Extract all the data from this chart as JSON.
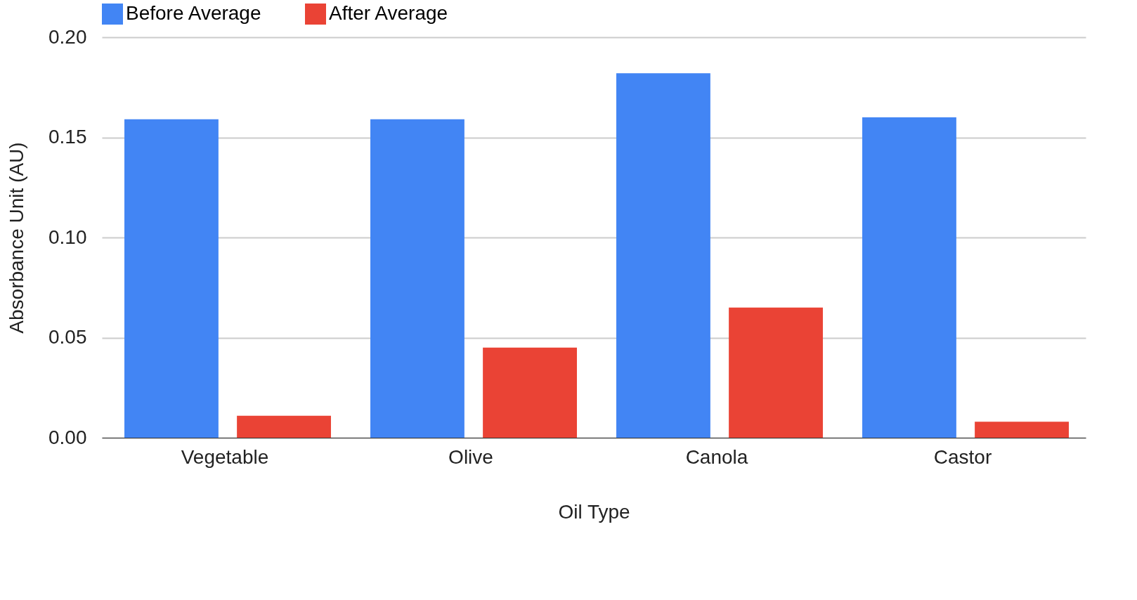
{
  "chart_data": {
    "type": "bar",
    "xlabel": "Oil Type",
    "ylabel": "Absorbance Unit (AU)",
    "categories": [
      "Vegetable",
      "Olive",
      "Canola",
      "Castor"
    ],
    "series": [
      {
        "name": "Before Average",
        "color": "#4285f4",
        "values": [
          0.159,
          0.159,
          0.182,
          0.16
        ]
      },
      {
        "name": "After Average",
        "color": "#ea4335",
        "values": [
          0.011,
          0.045,
          0.065,
          0.008
        ]
      }
    ],
    "ylim": [
      0,
      0.2
    ],
    "yticks": [
      {
        "value": 0,
        "label": "0.00"
      },
      {
        "value": 0.05,
        "label": "0.05"
      },
      {
        "value": 0.1,
        "label": "0.10"
      },
      {
        "value": 0.15,
        "label": "0.15"
      },
      {
        "value": 0.2,
        "label": "0.20"
      }
    ],
    "grid": "y",
    "legend": "top"
  }
}
